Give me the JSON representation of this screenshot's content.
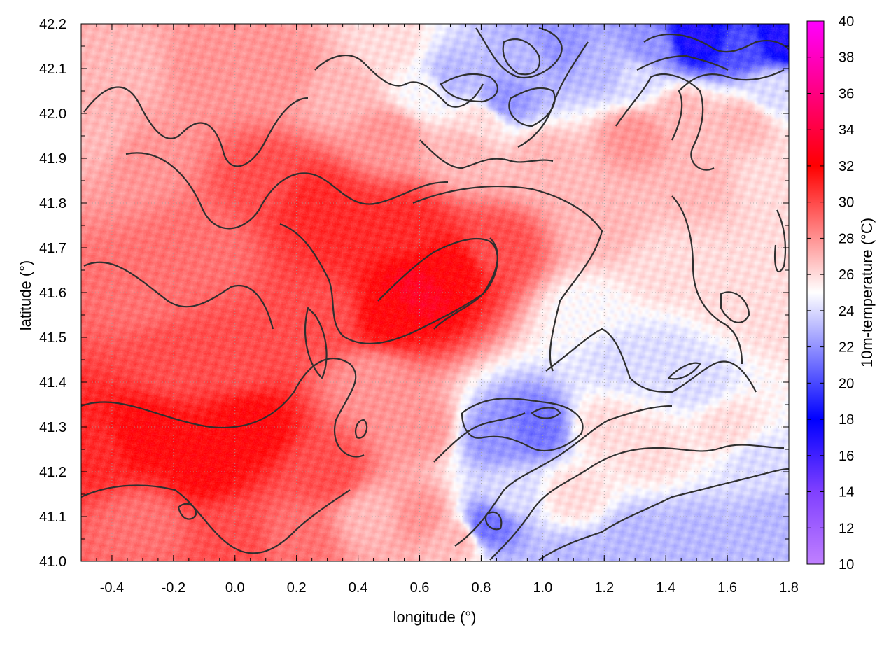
{
  "chart_data": {
    "type": "heatmap",
    "title": "",
    "xlabel": "longitude (°)",
    "ylabel": "latitude (°)",
    "colorbar_label": "10m-temperature (°C)",
    "xlim": [
      -0.5,
      1.8
    ],
    "ylim": [
      41.0,
      42.2
    ],
    "clim": [
      10,
      40
    ],
    "grid": true,
    "x_ticks": [
      "-0.4",
      "-0.2",
      "0.0",
      "0.2",
      "0.4",
      "0.6",
      "0.8",
      "1.0",
      "1.2",
      "1.4",
      "1.6",
      "1.8"
    ],
    "x_tick_values": [
      -0.4,
      -0.2,
      0.0,
      0.2,
      0.4,
      0.6,
      0.8,
      1.0,
      1.2,
      1.4,
      1.6,
      1.8
    ],
    "y_ticks": [
      "41.0",
      "41.1",
      "41.2",
      "41.3",
      "41.4",
      "41.5",
      "41.6",
      "41.7",
      "41.8",
      "41.9",
      "42.0",
      "42.1",
      "42.2"
    ],
    "y_tick_values": [
      41.0,
      41.1,
      41.2,
      41.3,
      41.4,
      41.5,
      41.6,
      41.7,
      41.8,
      41.9,
      42.0,
      42.1,
      42.2
    ],
    "colorbar_ticks": [
      "10",
      "12",
      "14",
      "16",
      "18",
      "20",
      "22",
      "24",
      "26",
      "28",
      "30",
      "32",
      "34",
      "36",
      "38",
      "40"
    ],
    "colorbar_tick_values": [
      10,
      12,
      14,
      16,
      18,
      20,
      22,
      24,
      26,
      28,
      30,
      32,
      34,
      36,
      38,
      40
    ],
    "colormap_stops": [
      {
        "value": 10,
        "color": "#c080ff"
      },
      {
        "value": 14,
        "color": "#8040ff"
      },
      {
        "value": 18,
        "color": "#0000ff"
      },
      {
        "value": 25,
        "color": "#ffffff"
      },
      {
        "value": 32,
        "color": "#ff0000"
      },
      {
        "value": 36,
        "color": "#ff0080"
      },
      {
        "value": 40,
        "color": "#ff00ff"
      }
    ],
    "field_samples": [
      {
        "lon": -0.45,
        "lat": 41.25,
        "t": 31
      },
      {
        "lon": -0.3,
        "lat": 41.28,
        "t": 32
      },
      {
        "lon": -0.1,
        "lat": 41.22,
        "t": 32
      },
      {
        "lon": 0.05,
        "lat": 41.3,
        "t": 32
      },
      {
        "lon": -0.2,
        "lat": 41.45,
        "t": 30
      },
      {
        "lon": 0.0,
        "lat": 41.45,
        "t": 30
      },
      {
        "lon": -0.3,
        "lat": 41.6,
        "t": 29
      },
      {
        "lon": -0.1,
        "lat": 41.7,
        "t": 29
      },
      {
        "lon": -0.3,
        "lat": 41.9,
        "t": 28
      },
      {
        "lon": -0.45,
        "lat": 41.95,
        "t": 27
      },
      {
        "lon": 0.1,
        "lat": 41.85,
        "t": 30
      },
      {
        "lon": 0.25,
        "lat": 41.8,
        "t": 31
      },
      {
        "lon": 0.35,
        "lat": 41.75,
        "t": 31
      },
      {
        "lon": 0.3,
        "lat": 41.55,
        "t": 30
      },
      {
        "lon": 0.5,
        "lat": 41.55,
        "t": 32
      },
      {
        "lon": 0.6,
        "lat": 41.6,
        "t": 33
      },
      {
        "lon": 0.7,
        "lat": 41.65,
        "t": 32
      },
      {
        "lon": 0.85,
        "lat": 41.7,
        "t": 30
      },
      {
        "lon": 0.55,
        "lat": 41.75,
        "t": 31
      },
      {
        "lon": 0.45,
        "lat": 41.4,
        "t": 28
      },
      {
        "lon": 0.6,
        "lat": 41.3,
        "t": 28
      },
      {
        "lon": 0.3,
        "lat": 41.2,
        "t": 30
      },
      {
        "lon": 0.2,
        "lat": 41.05,
        "t": 29
      },
      {
        "lon": 0.0,
        "lat": 41.05,
        "t": 30
      },
      {
        "lon": -0.3,
        "lat": 41.08,
        "t": 29
      },
      {
        "lon": 0.45,
        "lat": 41.1,
        "t": 27
      },
      {
        "lon": 0.6,
        "lat": 41.1,
        "t": 28
      },
      {
        "lon": 0.72,
        "lat": 41.05,
        "t": 27
      },
      {
        "lon": 0.85,
        "lat": 41.28,
        "t": 22
      },
      {
        "lon": 0.98,
        "lat": 41.3,
        "t": 21
      },
      {
        "lon": 0.9,
        "lat": 41.15,
        "t": 24
      },
      {
        "lon": 0.82,
        "lat": 41.08,
        "t": 21
      },
      {
        "lon": 1.1,
        "lat": 41.15,
        "t": 26
      },
      {
        "lon": 1.2,
        "lat": 41.3,
        "t": 26
      },
      {
        "lon": 1.35,
        "lat": 41.25,
        "t": 26
      },
      {
        "lon": 1.1,
        "lat": 41.0,
        "t": 23
      },
      {
        "lon": 1.3,
        "lat": 41.05,
        "t": 23
      },
      {
        "lon": 1.5,
        "lat": 41.05,
        "t": 23
      },
      {
        "lon": 1.75,
        "lat": 41.08,
        "t": 23
      },
      {
        "lon": 1.7,
        "lat": 41.22,
        "t": 24
      },
      {
        "lon": 1.6,
        "lat": 41.3,
        "t": 26
      },
      {
        "lon": 1.25,
        "lat": 41.45,
        "t": 24
      },
      {
        "lon": 1.4,
        "lat": 41.45,
        "t": 24
      },
      {
        "lon": 1.5,
        "lat": 41.4,
        "t": 24
      },
      {
        "lon": 1.15,
        "lat": 41.55,
        "t": 25
      },
      {
        "lon": 1.4,
        "lat": 41.65,
        "t": 26
      },
      {
        "lon": 1.6,
        "lat": 41.6,
        "t": 26
      },
      {
        "lon": 1.75,
        "lat": 41.55,
        "t": 26
      },
      {
        "lon": 1.2,
        "lat": 41.75,
        "t": 27
      },
      {
        "lon": 1.5,
        "lat": 41.85,
        "t": 27
      },
      {
        "lon": 1.75,
        "lat": 41.85,
        "t": 26
      },
      {
        "lon": 1.3,
        "lat": 41.95,
        "t": 28
      },
      {
        "lon": 1.45,
        "lat": 42.0,
        "t": 27
      },
      {
        "lon": 1.65,
        "lat": 41.98,
        "t": 27
      },
      {
        "lon": 1.0,
        "lat": 41.9,
        "t": 27
      },
      {
        "lon": 0.75,
        "lat": 41.92,
        "t": 27
      },
      {
        "lon": 0.5,
        "lat": 41.95,
        "t": 28
      },
      {
        "lon": 0.35,
        "lat": 42.05,
        "t": 27
      },
      {
        "lon": 0.15,
        "lat": 42.1,
        "t": 28
      },
      {
        "lon": -0.1,
        "lat": 42.1,
        "t": 28
      },
      {
        "lon": -0.35,
        "lat": 42.1,
        "t": 27
      },
      {
        "lon": 0.5,
        "lat": 42.15,
        "t": 26
      },
      {
        "lon": 0.7,
        "lat": 42.08,
        "t": 23
      },
      {
        "lon": 0.62,
        "lat": 42.05,
        "t": 25
      },
      {
        "lon": 0.88,
        "lat": 42.03,
        "t": 22
      },
      {
        "lon": 0.95,
        "lat": 42.12,
        "t": 23
      },
      {
        "lon": 1.05,
        "lat": 42.15,
        "t": 22
      },
      {
        "lon": 1.2,
        "lat": 42.1,
        "t": 23
      },
      {
        "lon": 1.35,
        "lat": 42.15,
        "t": 22
      },
      {
        "lon": 1.5,
        "lat": 42.17,
        "t": 17
      },
      {
        "lon": 1.65,
        "lat": 42.15,
        "t": 20
      },
      {
        "lon": 1.78,
        "lat": 42.17,
        "t": 17
      },
      {
        "lon": 1.75,
        "lat": 42.05,
        "t": 24
      },
      {
        "lon": 1.3,
        "lat": 42.08,
        "t": 24
      },
      {
        "lon": 0.8,
        "lat": 41.98,
        "t": 26
      }
    ]
  }
}
